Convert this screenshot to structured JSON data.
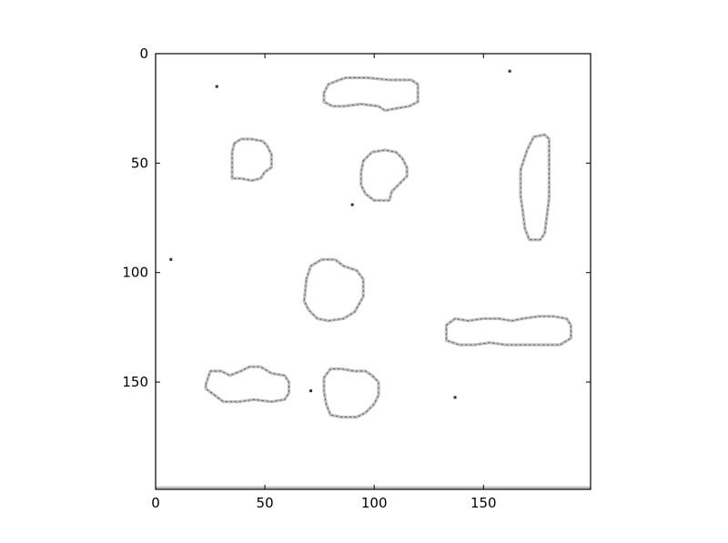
{
  "chart_data": {
    "type": "image",
    "title": "",
    "xlabel": "",
    "ylabel": "",
    "xlim": [
      0,
      199
    ],
    "ylim": [
      199,
      0
    ],
    "x_ticks": [
      0,
      50,
      100,
      150
    ],
    "y_ticks": [
      0,
      50,
      100,
      150
    ],
    "colormap": "gray",
    "grid": false,
    "blobs": [
      {
        "name": "blob-top-center",
        "points": [
          [
            77,
            18
          ],
          [
            79,
            14
          ],
          [
            84,
            12
          ],
          [
            87,
            11
          ],
          [
            97,
            11
          ],
          [
            107,
            12
          ],
          [
            117,
            12
          ],
          [
            120,
            14
          ],
          [
            120,
            22
          ],
          [
            116,
            24
          ],
          [
            110,
            25
          ],
          [
            105,
            26
          ],
          [
            102,
            24
          ],
          [
            94,
            23
          ],
          [
            86,
            24
          ],
          [
            81,
            24
          ],
          [
            77,
            22
          ]
        ]
      },
      {
        "name": "blob-left-upper",
        "points": [
          [
            36,
            41
          ],
          [
            39,
            39
          ],
          [
            44,
            39
          ],
          [
            49,
            40
          ],
          [
            51,
            42
          ],
          [
            53,
            46
          ],
          [
            53,
            52
          ],
          [
            50,
            54
          ],
          [
            48,
            57
          ],
          [
            44,
            58
          ],
          [
            39,
            57
          ],
          [
            35,
            57
          ],
          [
            35,
            51
          ],
          [
            35,
            45
          ]
        ]
      },
      {
        "name": "blob-center-upper",
        "points": [
          [
            95,
            49
          ],
          [
            99,
            45
          ],
          [
            105,
            44
          ],
          [
            110,
            45
          ],
          [
            113,
            48
          ],
          [
            115,
            52
          ],
          [
            115,
            56
          ],
          [
            112,
            59
          ],
          [
            108,
            63
          ],
          [
            107,
            67
          ],
          [
            100,
            67
          ],
          [
            96,
            64
          ],
          [
            94,
            60
          ],
          [
            94,
            54
          ]
        ]
      },
      {
        "name": "blob-right-vertical",
        "points": [
          [
            167,
            53
          ],
          [
            170,
            44
          ],
          [
            173,
            38
          ],
          [
            178,
            37
          ],
          [
            180,
            39
          ],
          [
            180,
            45
          ],
          [
            180,
            56
          ],
          [
            180,
            66
          ],
          [
            179,
            74
          ],
          [
            178,
            82
          ],
          [
            176,
            85
          ],
          [
            171,
            85
          ],
          [
            169,
            80
          ],
          [
            168,
            72
          ],
          [
            167,
            65
          ],
          [
            167,
            58
          ]
        ]
      },
      {
        "name": "blob-center-middle",
        "points": [
          [
            69,
            103
          ],
          [
            71,
            97
          ],
          [
            76,
            94
          ],
          [
            82,
            94
          ],
          [
            86,
            97
          ],
          [
            92,
            99
          ],
          [
            95,
            103
          ],
          [
            95,
            111
          ],
          [
            91,
            118
          ],
          [
            86,
            121
          ],
          [
            79,
            122
          ],
          [
            74,
            121
          ],
          [
            70,
            117
          ],
          [
            68,
            113
          ]
        ]
      },
      {
        "name": "blob-right-horizontal",
        "points": [
          [
            133,
            124
          ],
          [
            137,
            121
          ],
          [
            143,
            122
          ],
          [
            150,
            121
          ],
          [
            157,
            121
          ],
          [
            163,
            122
          ],
          [
            168,
            121
          ],
          [
            175,
            120
          ],
          [
            182,
            120
          ],
          [
            188,
            121
          ],
          [
            190,
            124
          ],
          [
            190,
            130
          ],
          [
            185,
            133
          ],
          [
            176,
            133
          ],
          [
            168,
            133
          ],
          [
            160,
            133
          ],
          [
            153,
            132
          ],
          [
            146,
            133
          ],
          [
            139,
            133
          ],
          [
            133,
            131
          ]
        ]
      },
      {
        "name": "blob-bottom-left",
        "points": [
          [
            23,
            151
          ],
          [
            25,
            145
          ],
          [
            30,
            145
          ],
          [
            34,
            147
          ],
          [
            39,
            145
          ],
          [
            43,
            143
          ],
          [
            48,
            143
          ],
          [
            53,
            146
          ],
          [
            59,
            147
          ],
          [
            61,
            150
          ],
          [
            61,
            155
          ],
          [
            59,
            158
          ],
          [
            53,
            159
          ],
          [
            45,
            158
          ],
          [
            38,
            159
          ],
          [
            31,
            159
          ],
          [
            27,
            156
          ],
          [
            23,
            153
          ]
        ]
      },
      {
        "name": "blob-bottom-center",
        "points": [
          [
            77,
            148
          ],
          [
            80,
            144
          ],
          [
            85,
            144
          ],
          [
            91,
            145
          ],
          [
            96,
            145
          ],
          [
            99,
            147
          ],
          [
            102,
            150
          ],
          [
            102,
            156
          ],
          [
            100,
            160
          ],
          [
            96,
            164
          ],
          [
            92,
            166
          ],
          [
            85,
            166
          ],
          [
            80,
            165
          ],
          [
            78,
            160
          ],
          [
            77,
            154
          ]
        ]
      }
    ],
    "dots": [
      [
        28,
        15
      ],
      [
        162,
        8
      ],
      [
        90,
        69
      ],
      [
        7,
        94
      ],
      [
        71,
        154
      ],
      [
        137,
        157
      ]
    ]
  }
}
